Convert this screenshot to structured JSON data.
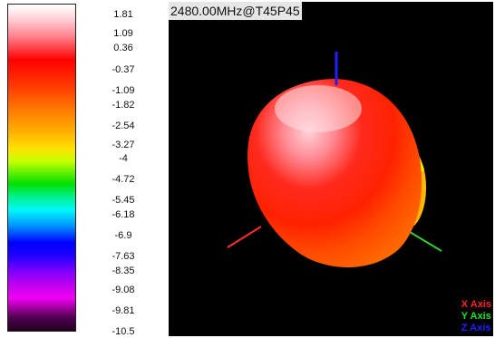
{
  "colorbar": {
    "ticks": [
      "1.81",
      "1.09",
      "0.36",
      "-0.37",
      "-1.09",
      "-1.82",
      "-2.54",
      "-3.27",
      "-4",
      "-4.72",
      "-5.45",
      "-6.18",
      "-6.9",
      "-7.63",
      "-8.35",
      "-9.08",
      "-9.81",
      "-10.5"
    ]
  },
  "view": {
    "label": "2480.00MHz@T45P45",
    "legend": {
      "x": {
        "text": "X Axis",
        "color": "#ff2020"
      },
      "y": {
        "text": "Y Axis",
        "color": "#20e020"
      },
      "z": {
        "text": "Z Axis",
        "color": "#2020ff"
      }
    }
  }
}
